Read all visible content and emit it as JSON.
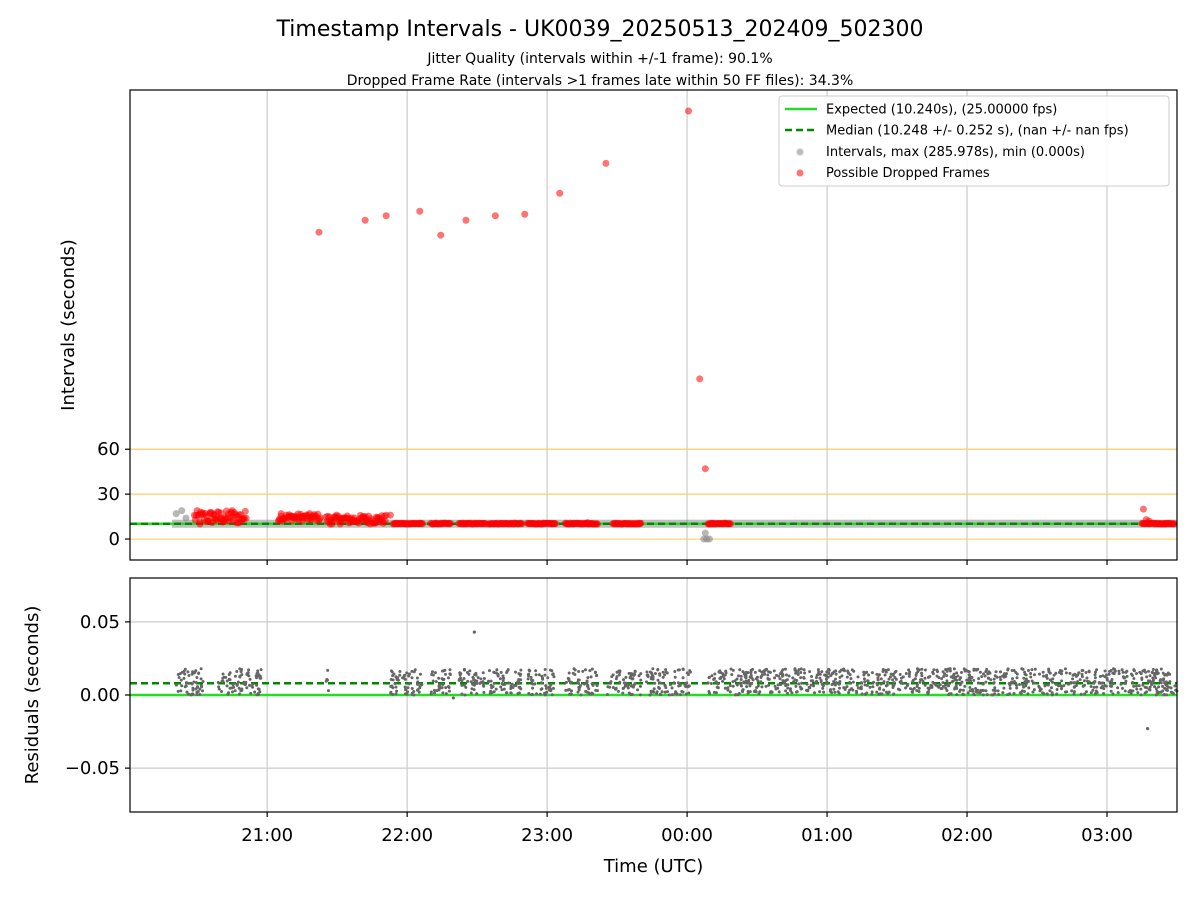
{
  "figure": {
    "title": "Timestamp Intervals - UK0039_20250513_202409_502300",
    "subtitle1": "Jitter Quality (intervals within +/-1 frame): 90.1%",
    "subtitle2": "Dropped Frame Rate (intervals >1 frames late within 50 FF files): 34.3%"
  },
  "chart_data": [
    {
      "type": "scatter",
      "panel": "top",
      "title": "Timestamp Intervals - UK0039_20250513_202409_502300",
      "xlabel": "",
      "ylabel": "Intervals (seconds)",
      "x_unit": "hours_after_20:00_UTC",
      "xlim": [
        20.02,
        27.5
      ],
      "y_ticks": [
        0,
        30,
        60
      ],
      "y_tick_labels": [
        "0",
        "30",
        "60"
      ],
      "ylim": [
        -14,
        300
      ],
      "threshold_lines": [
        0,
        30,
        60
      ],
      "threshold_color": "#ffcc66",
      "grid": "x",
      "legend_position": "upper right",
      "legend": [
        "Expected (10.240s), (25.00000 fps)",
        "Median (10.248 +/- 0.252 s), (nan +/- nan fps)",
        "Intervals, max (285.978s), min (0.000s)",
        "Possible Dropped Frames"
      ],
      "expected_line": {
        "value": 10.24,
        "color": "#22dd22"
      },
      "median_line": {
        "value": 10.248,
        "color": "#008800"
      },
      "series": [
        {
          "name": "Possible Dropped Frames",
          "color": "#ff0000",
          "points": [
            [
              21.37,
              205
            ],
            [
              21.7,
              213
            ],
            [
              21.85,
              216
            ],
            [
              22.09,
              219
            ],
            [
              22.24,
              203
            ],
            [
              22.42,
              213
            ],
            [
              22.63,
              216
            ],
            [
              22.84,
              217
            ],
            [
              23.09,
              231
            ],
            [
              23.42,
              251
            ],
            [
              24.01,
              285.978
            ],
            [
              24.09,
              107
            ],
            [
              24.13,
              47
            ],
            [
              20.52,
              10
            ],
            [
              20.58,
              12
            ],
            [
              20.62,
              16
            ],
            [
              20.67,
              14
            ],
            [
              20.7,
              12
            ],
            [
              20.75,
              19
            ],
            [
              20.8,
              11
            ],
            [
              21.1,
              17
            ],
            [
              21.18,
              15
            ],
            [
              21.25,
              14
            ],
            [
              21.31,
              13
            ],
            [
              21.45,
              10
            ],
            [
              21.52,
              14
            ],
            [
              21.6,
              13
            ],
            [
              21.7,
              15
            ],
            [
              21.8,
              14
            ],
            [
              21.88,
              16
            ],
            [
              23.29,
              11
            ],
            [
              24.17,
              10
            ],
            [
              27.26,
              20
            ],
            [
              27.28,
              13
            ],
            [
              27.3,
              12
            ]
          ],
          "clusters": [
            [
              20.48,
              20.85,
              10,
              19
            ],
            [
              21.08,
              21.38,
              12,
              17
            ],
            [
              21.42,
              21.85,
              10,
              16
            ],
            [
              21.9,
              22.11,
              10,
              11
            ],
            [
              22.17,
              22.31,
              10,
              11
            ],
            [
              22.37,
              22.56,
              10,
              11
            ],
            [
              22.58,
              22.82,
              10,
              11
            ],
            [
              22.86,
              23.06,
              10,
              11
            ],
            [
              23.13,
              23.36,
              10,
              11
            ],
            [
              23.47,
              23.67,
              10,
              11
            ],
            [
              24.15,
              24.31,
              10,
              11
            ],
            [
              27.25,
              27.48,
              10,
              11
            ]
          ]
        },
        {
          "name": "Intervals, max (285.978s), min (0.000s)",
          "color": "#888888",
          "points": [
            [
              20.35,
              17
            ],
            [
              20.39,
              19
            ],
            [
              20.42,
              14
            ],
            [
              24.12,
              0
            ],
            [
              24.14,
              0
            ],
            [
              24.16,
              0
            ],
            [
              24.13,
              4
            ]
          ],
          "band": [
            20.32,
            27.5,
            10.24
          ]
        }
      ]
    },
    {
      "type": "scatter",
      "panel": "bottom",
      "xlabel": "Time (UTC)",
      "ylabel": "Residuals (seconds)",
      "x_unit": "hours_after_20:00_UTC",
      "xlim": [
        20.02,
        27.5
      ],
      "x_ticks": [
        21,
        22,
        23,
        24,
        25,
        26,
        27
      ],
      "x_tick_labels": [
        "21:00",
        "22:00",
        "23:00",
        "00:00",
        "01:00",
        "02:00",
        "03:00"
      ],
      "ylim": [
        -0.08,
        0.08
      ],
      "y_ticks": [
        -0.05,
        0,
        0.05
      ],
      "y_tick_labels": [
        "−0.05",
        "0.00",
        "0.05"
      ],
      "grid": "both",
      "zero_line": {
        "value": 0,
        "color": "#22dd22"
      },
      "median_line": {
        "value": 0.008,
        "color": "#008800"
      },
      "series": [
        {
          "name": "Residuals",
          "color": "#666666",
          "dense_segments": [
            [
              20.35,
              20.55
            ],
            [
              20.65,
              20.96
            ],
            [
              21.42,
              21.44
            ],
            [
              21.88,
              22.11
            ],
            [
              22.17,
              22.31
            ],
            [
              22.37,
              22.56
            ],
            [
              22.58,
              22.82
            ],
            [
              22.86,
              23.06
            ],
            [
              23.13,
              23.36
            ],
            [
              23.43,
              23.67
            ],
            [
              23.7,
              24.03
            ],
            [
              24.15,
              27.5
            ]
          ],
          "residual_range": [
            0.0,
            0.018
          ],
          "outliers": [
            [
              22.48,
              0.043
            ],
            [
              27.29,
              -0.023
            ],
            [
              22.33,
              -0.002
            ]
          ]
        }
      ]
    }
  ]
}
